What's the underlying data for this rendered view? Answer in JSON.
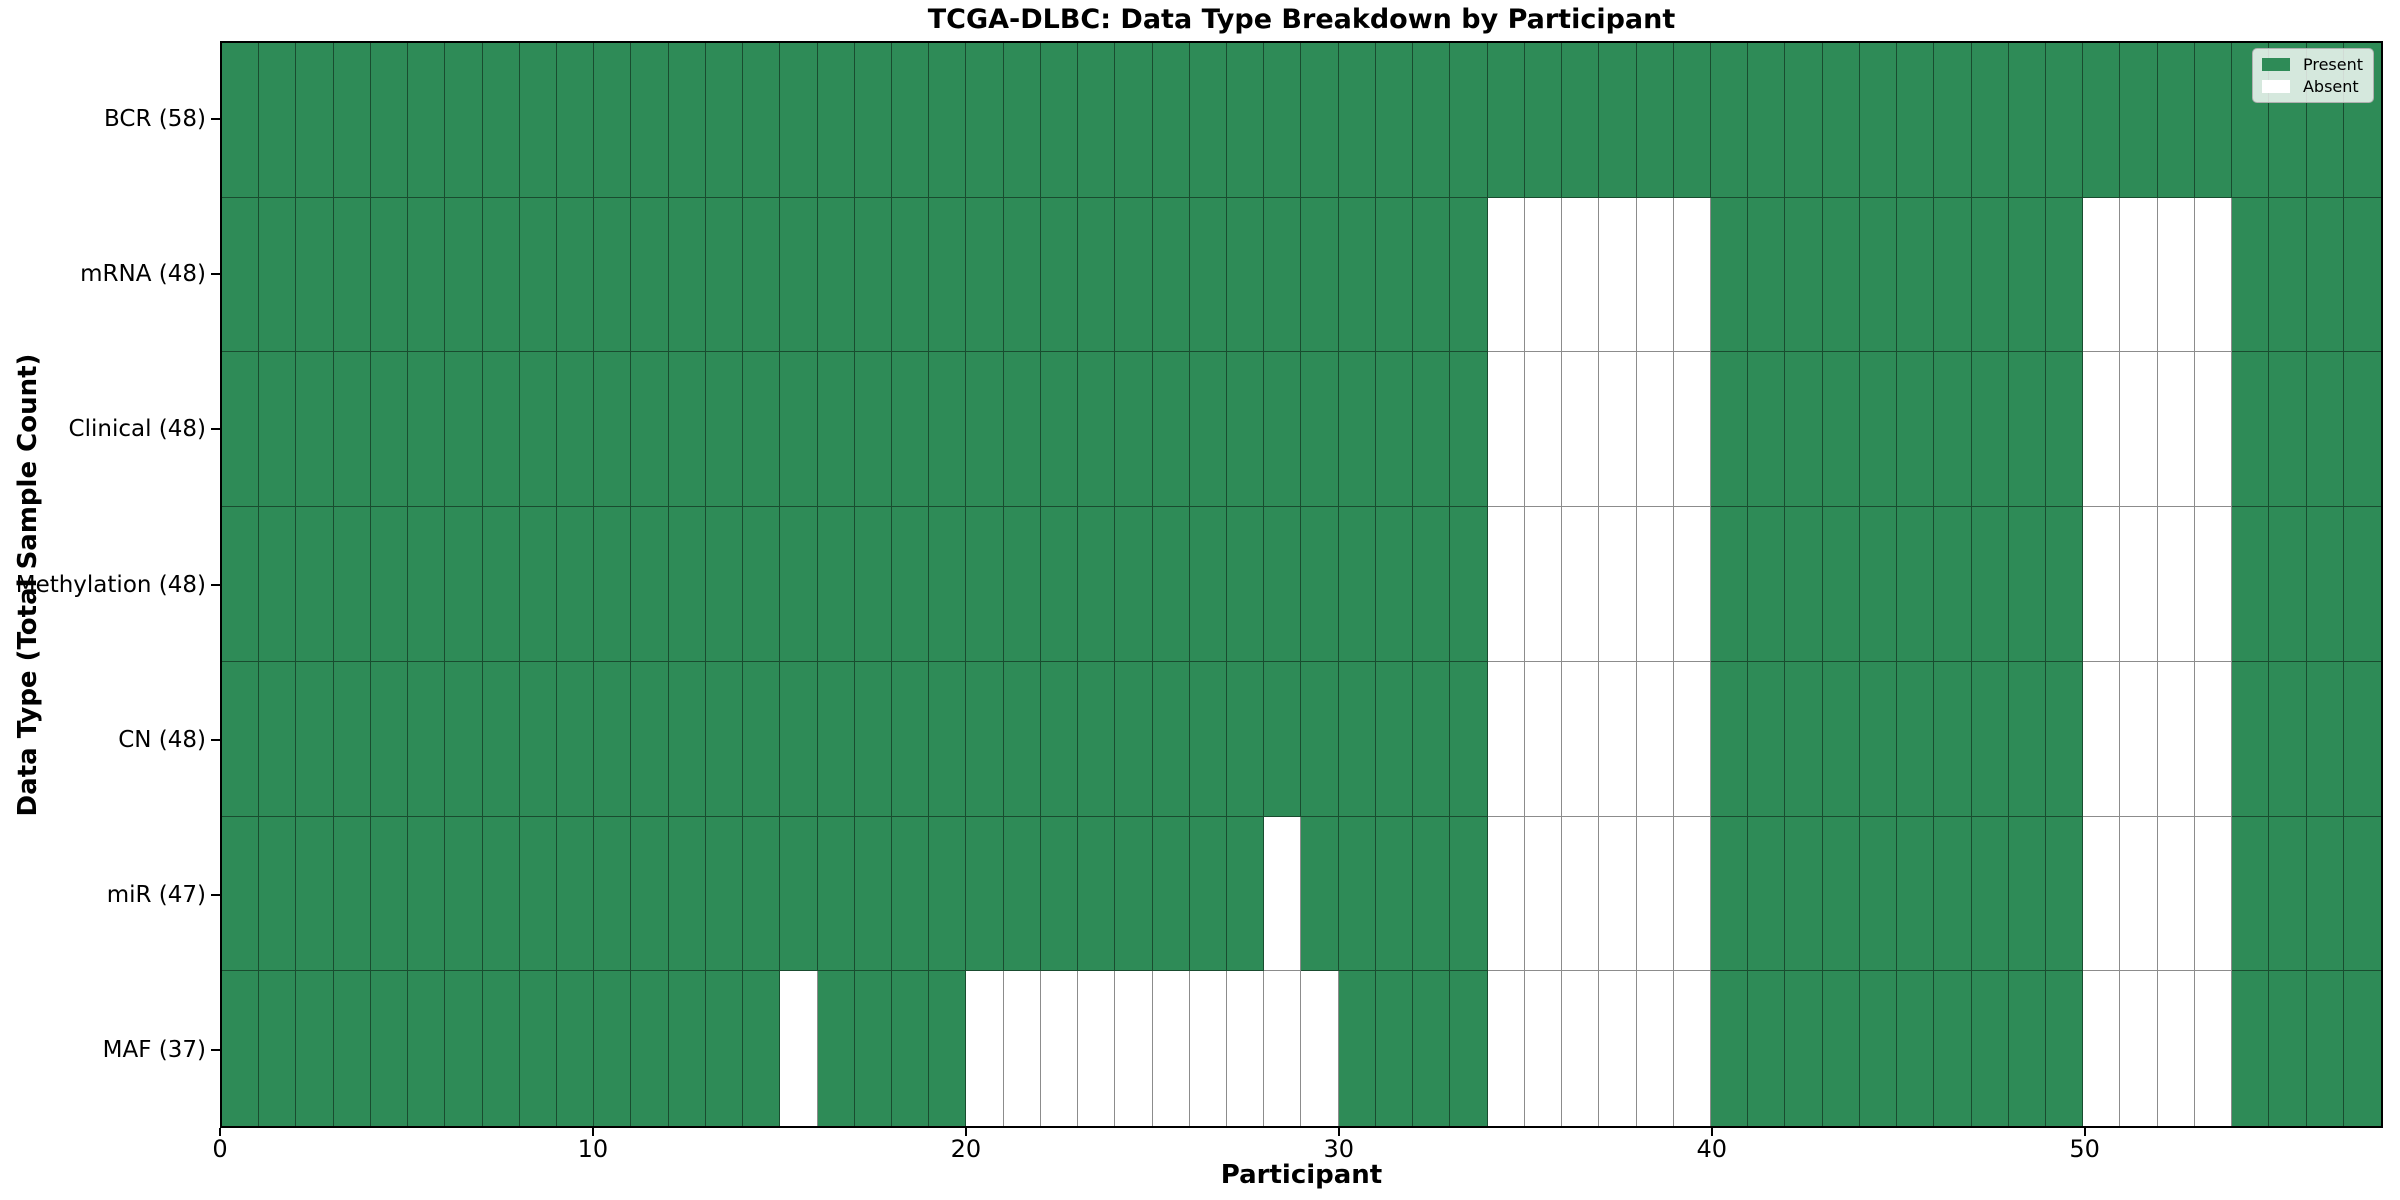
{
  "chart_data": {
    "type": "heatmap",
    "title": "TCGA-DLBC: Data Type Breakdown by Participant",
    "xlabel": "Participant",
    "ylabel": "Data Type (Total Sample Count)",
    "n_participants": 58,
    "xlim": [
      0,
      58
    ],
    "x_ticks": [
      0,
      10,
      20,
      30,
      40,
      50
    ],
    "grid": true,
    "legend_position": "upper right",
    "colors": {
      "present": "#2e8b57",
      "absent": "#ffffff",
      "grid_line": "rgba(0,0,0,0.45)",
      "spine": "#000000"
    },
    "legend": [
      {
        "name": "present",
        "label": "Present",
        "color": "#2e8b57"
      },
      {
        "name": "absent",
        "label": "Absent",
        "color": "#ffffff"
      }
    ],
    "rows": [
      {
        "name": "BCR",
        "label": "BCR (58)",
        "present_count": 58,
        "absent_participants": []
      },
      {
        "name": "mRNA",
        "label": "mRNA (48)",
        "present_count": 48,
        "absent_participants": [
          34,
          35,
          36,
          37,
          38,
          39,
          50,
          51,
          52,
          53
        ]
      },
      {
        "name": "Clinical",
        "label": "Clinical (48)",
        "present_count": 48,
        "absent_participants": [
          34,
          35,
          36,
          37,
          38,
          39,
          50,
          51,
          52,
          53
        ]
      },
      {
        "name": "Methylation",
        "label": "Methylation (48)",
        "present_count": 48,
        "absent_participants": [
          34,
          35,
          36,
          37,
          38,
          39,
          50,
          51,
          52,
          53
        ]
      },
      {
        "name": "CN",
        "label": "CN (48)",
        "present_count": 48,
        "absent_participants": [
          34,
          35,
          36,
          37,
          38,
          39,
          50,
          51,
          52,
          53
        ]
      },
      {
        "name": "miR",
        "label": "miR (47)",
        "present_count": 47,
        "absent_participants": [
          28,
          34,
          35,
          36,
          37,
          38,
          39,
          50,
          51,
          52,
          53
        ]
      },
      {
        "name": "MAF",
        "label": "MAF (37)",
        "present_count": 37,
        "absent_participants": [
          15,
          20,
          21,
          22,
          23,
          24,
          25,
          26,
          27,
          28,
          29,
          34,
          35,
          36,
          37,
          38,
          39,
          50,
          51,
          52,
          53
        ]
      }
    ]
  }
}
